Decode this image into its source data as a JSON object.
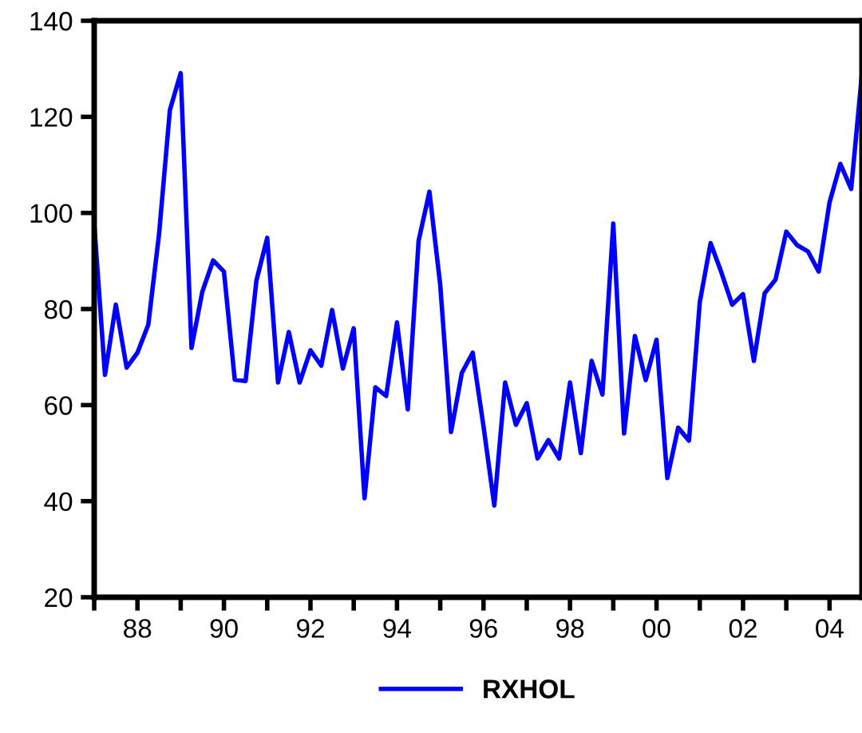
{
  "chart_data": {
    "type": "line",
    "x": [
      1987,
      1987.25,
      1987.5,
      1987.75,
      1988,
      1988.25,
      1988.5,
      1988.75,
      1989,
      1989.25,
      1989.5,
      1989.75,
      1990,
      1990.25,
      1990.5,
      1990.75,
      1991,
      1991.25,
      1991.5,
      1991.75,
      1992,
      1992.25,
      1992.5,
      1992.75,
      1993,
      1993.25,
      1993.5,
      1993.75,
      1994,
      1994.25,
      1994.5,
      1994.75,
      1995,
      1995.25,
      1995.5,
      1995.75,
      1996,
      1996.25,
      1996.5,
      1996.75,
      1997,
      1997.25,
      1997.5,
      1997.75,
      1998,
      1998.25,
      1998.5,
      1998.75,
      1999,
      1999.25,
      1999.5,
      1999.75,
      2000,
      2000.25,
      2000.5,
      2000.75,
      2001,
      2001.25,
      2001.5,
      2001.75,
      2002,
      2002.25,
      2002.5,
      2002.75,
      2003,
      2003.25,
      2003.5,
      2003.75,
      2004,
      2004.25,
      2004.5,
      2004.75
    ],
    "series": [
      {
        "name": "RXHOL",
        "color": "#0000ff",
        "values": [
          97.8,
          66.3,
          80.9,
          67.8,
          70.9,
          76.7,
          95.6,
          121.4,
          129.1,
          71.9,
          83.6,
          90.1,
          87.8,
          65.3,
          65.0,
          85.9,
          94.8,
          64.7,
          75.2,
          64.7,
          71.4,
          68.2,
          79.8,
          67.6,
          76.0,
          40.6,
          63.7,
          61.9,
          77.2,
          59.1,
          94.2,
          104.4,
          85.0,
          54.4,
          66.7,
          70.9,
          55.6,
          39.1,
          64.7,
          55.9,
          60.4,
          48.9,
          52.7,
          48.9,
          64.7,
          50.0,
          69.2,
          62.2,
          97.8,
          54.1,
          74.4,
          65.2,
          73.6,
          44.8,
          55.3,
          52.6,
          81.4,
          93.7,
          87.6,
          80.9,
          83.1,
          69.2,
          83.3,
          86.1,
          96.1,
          93.3,
          92.0,
          87.8,
          102.2,
          110.2,
          105.0,
          129.1
        ]
      }
    ],
    "xlim": [
      1987,
      2004.75
    ],
    "xticks": [
      {
        "value": 1987,
        "label": null
      },
      {
        "value": 1988,
        "label": "88"
      },
      {
        "value": 1989,
        "label": null
      },
      {
        "value": 1990,
        "label": "90"
      },
      {
        "value": 1991,
        "label": null
      },
      {
        "value": 1992,
        "label": "92"
      },
      {
        "value": 1993,
        "label": null
      },
      {
        "value": 1994,
        "label": "94"
      },
      {
        "value": 1995,
        "label": null
      },
      {
        "value": 1996,
        "label": "96"
      },
      {
        "value": 1997,
        "label": null
      },
      {
        "value": 1998,
        "label": "98"
      },
      {
        "value": 1999,
        "label": null
      },
      {
        "value": 2000,
        "label": "00"
      },
      {
        "value": 2001,
        "label": null
      },
      {
        "value": 2002,
        "label": "02"
      },
      {
        "value": 2003,
        "label": null
      },
      {
        "value": 2004,
        "label": "04"
      }
    ],
    "ylim": [
      20,
      140
    ],
    "yticks": [
      20,
      40,
      60,
      80,
      100,
      120,
      140
    ],
    "grid": false,
    "legend": "bottom",
    "marker": "none",
    "line_style": "solid"
  }
}
